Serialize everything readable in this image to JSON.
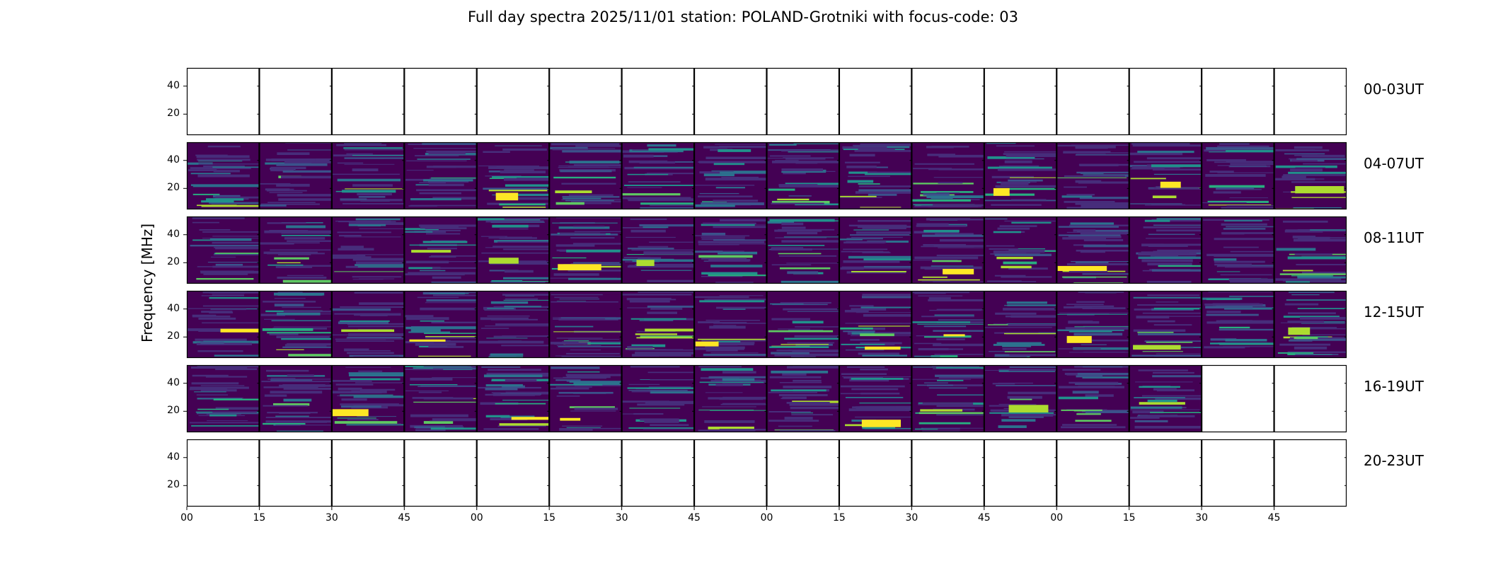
{
  "chart_data": {
    "type": "heatmap",
    "title": "Full day spectra 2025/11/01 station: POLAND-Grotniki with focus-code: 03",
    "ylabel": "Frequency [MHz]",
    "yticks": [
      20,
      40
    ],
    "ylim": [
      5,
      53
    ],
    "xticks": [
      "00",
      "15",
      "30",
      "45",
      "00",
      "15",
      "30",
      "45",
      "00",
      "15",
      "30",
      "45",
      "00",
      "15",
      "30",
      "45"
    ],
    "panels_per_row": 16,
    "colormap": "viridis",
    "rows": [
      {
        "label": "00-03UT",
        "available": [
          0,
          0,
          0,
          0,
          0,
          0,
          0,
          0,
          0,
          0,
          0,
          0,
          0,
          0,
          0,
          0
        ]
      },
      {
        "label": "04-07UT",
        "available": [
          1,
          1,
          1,
          1,
          1,
          1,
          1,
          1,
          1,
          1,
          1,
          1,
          1,
          1,
          1,
          1
        ]
      },
      {
        "label": "08-11UT",
        "available": [
          1,
          1,
          1,
          1,
          1,
          1,
          1,
          1,
          1,
          1,
          1,
          1,
          1,
          1,
          1,
          1
        ]
      },
      {
        "label": "12-15UT",
        "available": [
          1,
          1,
          1,
          1,
          1,
          1,
          1,
          1,
          1,
          1,
          1,
          1,
          1,
          1,
          1,
          1
        ]
      },
      {
        "label": "16-19UT",
        "available": [
          1,
          1,
          1,
          1,
          1,
          1,
          1,
          1,
          1,
          1,
          1,
          1,
          1,
          1,
          0,
          0
        ]
      },
      {
        "label": "20-23UT",
        "available": [
          0,
          0,
          0,
          0,
          0,
          0,
          0,
          0,
          0,
          0,
          0,
          0,
          0,
          0,
          0,
          0
        ]
      }
    ]
  },
  "colors": {
    "background": "#440154",
    "viridis": [
      "#440154",
      "#472d7b",
      "#3b528b",
      "#2c728e",
      "#21918c",
      "#28ae80",
      "#5ec962",
      "#addc30",
      "#fde725"
    ]
  }
}
